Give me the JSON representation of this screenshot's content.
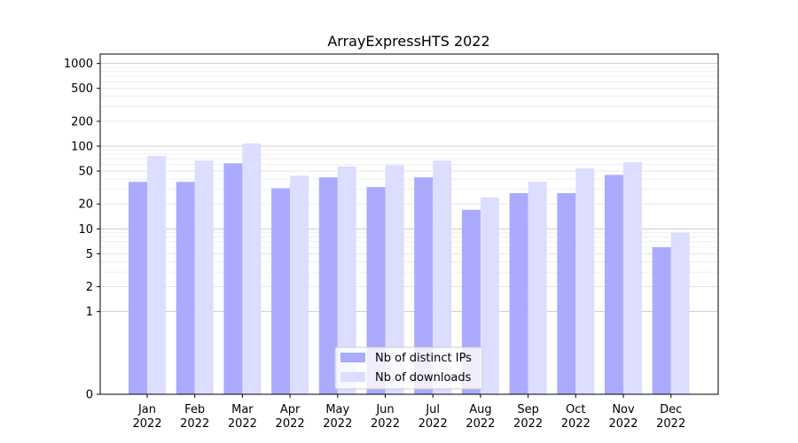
{
  "chart_data": {
    "type": "bar",
    "title": "ArrayExpressHTS 2022",
    "categories": [
      {
        "month": "Jan",
        "year": "2022"
      },
      {
        "month": "Feb",
        "year": "2022"
      },
      {
        "month": "Mar",
        "year": "2022"
      },
      {
        "month": "Apr",
        "year": "2022"
      },
      {
        "month": "May",
        "year": "2022"
      },
      {
        "month": "Jun",
        "year": "2022"
      },
      {
        "month": "Jul",
        "year": "2022"
      },
      {
        "month": "Aug",
        "year": "2022"
      },
      {
        "month": "Sep",
        "year": "2022"
      },
      {
        "month": "Oct",
        "year": "2022"
      },
      {
        "month": "Nov",
        "year": "2022"
      },
      {
        "month": "Dec",
        "year": "2022"
      }
    ],
    "series": [
      {
        "name": "Nb of distinct IPs",
        "color": "#aaaaff",
        "values": [
          37,
          37,
          62,
          31,
          42,
          32,
          42,
          17,
          27,
          27,
          45,
          6
        ]
      },
      {
        "name": "Nb of downloads",
        "color": "#ddddff",
        "values": [
          76,
          67,
          108,
          44,
          57,
          59,
          67,
          24,
          37,
          54,
          64,
          9
        ]
      }
    ],
    "yscale": "symlog",
    "ylim": [
      0,
      1300
    ],
    "yticks": [
      {
        "value": 0,
        "label": "0"
      },
      {
        "value": 1,
        "label": "1"
      },
      {
        "value": 2,
        "label": "2"
      },
      {
        "value": 5,
        "label": "5"
      },
      {
        "value": 10,
        "label": "10"
      },
      {
        "value": 20,
        "label": "20"
      },
      {
        "value": 50,
        "label": "50"
      },
      {
        "value": 100,
        "label": "100"
      },
      {
        "value": 200,
        "label": "200"
      },
      {
        "value": 500,
        "label": "500"
      },
      {
        "value": 1000,
        "label": "1000"
      }
    ],
    "grid": true,
    "legend_position": "bottom-center"
  }
}
